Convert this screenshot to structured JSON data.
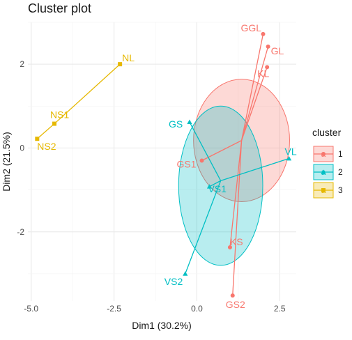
{
  "chart_data": {
    "type": "scatter",
    "title": "Cluster plot",
    "xlabel": "Dim1 (30.2%)",
    "ylabel": "Dim2 (21.5%)",
    "xlim": [
      -5.1,
      3.0
    ],
    "ylim": [
      -3.65,
      3.0
    ],
    "xticks": [
      -5.0,
      -2.5,
      0.0,
      2.5
    ],
    "xtick_labels": [
      "-5.0",
      "-2.5",
      "0.0",
      "2.5"
    ],
    "yticks": [
      -2,
      0,
      2
    ],
    "ytick_labels": [
      "-2",
      "0",
      "2"
    ],
    "grid": true,
    "legend": {
      "title": "cluster",
      "position": "right",
      "entries": [
        {
          "label": "1",
          "glyph": "a",
          "marker": "circle"
        },
        {
          "label": "2",
          "glyph": "a",
          "marker": "triangle"
        },
        {
          "label": "3",
          "glyph": "a",
          "marker": "square"
        }
      ]
    },
    "clusters": [
      {
        "id": "1",
        "color": "#F8766D",
        "marker": "circle",
        "center": [
          1.35,
          0.18
        ],
        "ellipse": {
          "cx": 1.35,
          "cy": 0.18,
          "rx": 1.45,
          "ry": 1.46
        },
        "points": [
          {
            "label": "GGL",
            "x": 2.0,
            "y": 2.72
          },
          {
            "label": "GL",
            "x": 2.15,
            "y": 2.42
          },
          {
            "label": "KL",
            "x": 2.12,
            "y": 1.93
          },
          {
            "label": "GS1",
            "x": 0.15,
            "y": -0.3
          },
          {
            "label": "KS",
            "x": 1.0,
            "y": -2.37
          },
          {
            "label": "GS2",
            "x": 1.08,
            "y": -3.52
          }
        ]
      },
      {
        "id": "2",
        "color": "#00BFC4",
        "marker": "triangle",
        "center": [
          0.72,
          -0.78
        ],
        "ellipse": {
          "cx": 0.72,
          "cy": -0.9,
          "rx": 1.27,
          "ry": 1.9
        },
        "points": [
          {
            "label": "GS",
            "x": -0.22,
            "y": 0.62
          },
          {
            "label": "VL",
            "x": 2.78,
            "y": -0.25
          },
          {
            "label": "VS1",
            "x": 0.38,
            "y": -0.92
          },
          {
            "label": "VS2",
            "x": -0.35,
            "y": -3.0
          }
        ]
      },
      {
        "id": "3",
        "color": "#E6B800",
        "marker": "square",
        "points": [
          {
            "label": "NL",
            "x": -2.32,
            "y": 2.0
          },
          {
            "label": "NS1",
            "x": -4.3,
            "y": 0.58
          },
          {
            "label": "NS2",
            "x": -4.82,
            "y": 0.22
          }
        ]
      }
    ]
  }
}
